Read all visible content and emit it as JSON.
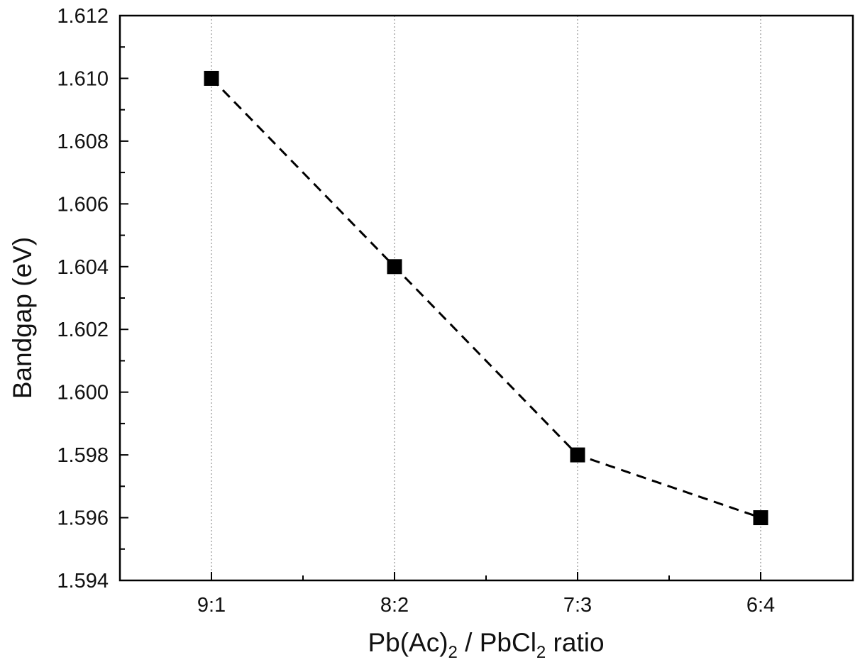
{
  "chart_data": {
    "type": "line",
    "title": "",
    "categories": [
      "9:1",
      "8:2",
      "7:3",
      "6:4"
    ],
    "series": [
      {
        "name": "Bandgap",
        "values": [
          1.61,
          1.604,
          1.598,
          1.596
        ],
        "marker": "square",
        "line_style": "dashed",
        "color": "#000000"
      }
    ],
    "xlabel": {
      "prefix": "Pb(Ac)",
      "sub1": "2",
      "middle": " / PbCl",
      "sub2": "2",
      "suffix": " ratio"
    },
    "ylabel": "Bandgap (eV)",
    "ylim": [
      1.594,
      1.612
    ],
    "yticks": [
      "1.594",
      "1.596",
      "1.598",
      "1.600",
      "1.602",
      "1.604",
      "1.606",
      "1.608",
      "1.610",
      "1.612"
    ],
    "grid": "vertical-dotted"
  }
}
